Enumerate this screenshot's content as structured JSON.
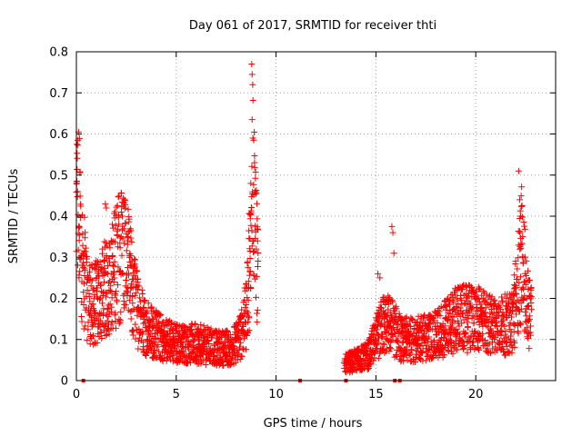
{
  "chart_data": {
    "type": "scatter",
    "title": "Day 061 of 2017, SRMTID for receiver thti",
    "xlabel": "GPS time / hours",
    "ylabel": "SRMTID / TECUs",
    "xlim": [
      0,
      24
    ],
    "ylim": [
      0,
      0.8
    ],
    "xticks": [
      0,
      5,
      10,
      15,
      20
    ],
    "yticks": [
      0,
      0.1,
      0.2,
      0.3,
      0.4,
      0.5,
      0.6,
      0.7,
      0.8
    ],
    "xtick_labels": [
      "0",
      "5",
      "10",
      "15",
      "20"
    ],
    "ytick_labels": [
      "0",
      "0.1",
      "0.2",
      "0.3",
      "0.4",
      "0.5",
      "0.6",
      "0.7",
      "0.8"
    ],
    "grid": true,
    "marker": "+",
    "series_color": "#ff0000",
    "profile": [
      [
        0.0,
        0.4
      ],
      [
        0.1,
        0.42
      ],
      [
        0.3,
        0.3
      ],
      [
        0.5,
        0.22
      ],
      [
        0.8,
        0.18
      ],
      [
        1.2,
        0.2
      ],
      [
        1.6,
        0.24
      ],
      [
        2.0,
        0.28
      ],
      [
        2.3,
        0.33
      ],
      [
        2.6,
        0.27
      ],
      [
        3.0,
        0.18
      ],
      [
        3.5,
        0.13
      ],
      [
        4.0,
        0.11
      ],
      [
        4.5,
        0.1
      ],
      [
        5.0,
        0.09
      ],
      [
        6.0,
        0.09
      ],
      [
        7.0,
        0.08
      ],
      [
        7.8,
        0.08
      ],
      [
        8.2,
        0.11
      ],
      [
        8.5,
        0.16
      ],
      [
        8.7,
        0.3
      ],
      [
        8.85,
        0.48
      ],
      [
        9.0,
        0.35
      ],
      [
        9.1,
        0.25
      ],
      [
        13.4,
        0.04
      ],
      [
        14.0,
        0.05
      ],
      [
        14.6,
        0.06
      ],
      [
        15.0,
        0.1
      ],
      [
        15.4,
        0.14
      ],
      [
        15.8,
        0.13
      ],
      [
        16.3,
        0.1
      ],
      [
        17.0,
        0.1
      ],
      [
        18.0,
        0.11
      ],
      [
        19.0,
        0.15
      ],
      [
        20.0,
        0.15
      ],
      [
        21.0,
        0.13
      ],
      [
        21.8,
        0.14
      ],
      [
        22.1,
        0.22
      ],
      [
        22.3,
        0.32
      ],
      [
        22.6,
        0.18
      ],
      [
        22.8,
        0.15
      ]
    ],
    "spikes": [
      [
        8.78,
        0.77
      ],
      [
        8.8,
        0.745
      ],
      [
        8.83,
        0.72
      ],
      [
        8.8,
        0.635
      ],
      [
        8.84,
        0.59
      ],
      [
        8.88,
        0.585
      ],
      [
        8.92,
        0.53
      ],
      [
        8.95,
        0.46
      ],
      [
        0.02,
        0.485
      ],
      [
        0.06,
        0.46
      ],
      [
        15.8,
        0.375
      ],
      [
        15.85,
        0.36
      ],
      [
        15.9,
        0.31
      ],
      [
        15.1,
        0.26
      ],
      [
        15.2,
        0.25
      ],
      [
        22.15,
        0.51
      ],
      [
        22.2,
        0.44
      ],
      [
        22.25,
        0.4
      ],
      [
        22.35,
        0.35
      ],
      [
        22.4,
        0.3
      ],
      [
        2.25,
        0.41
      ],
      [
        2.3,
        0.4
      ],
      [
        1.45,
        0.43
      ],
      [
        1.5,
        0.42
      ],
      [
        1.8,
        0.38
      ],
      [
        2.6,
        0.35
      ]
    ],
    "zero_points": [
      0.35,
      11.2,
      13.5,
      15.95,
      16.2
    ],
    "gaps": [
      [
        9.15,
        13.35
      ]
    ]
  }
}
